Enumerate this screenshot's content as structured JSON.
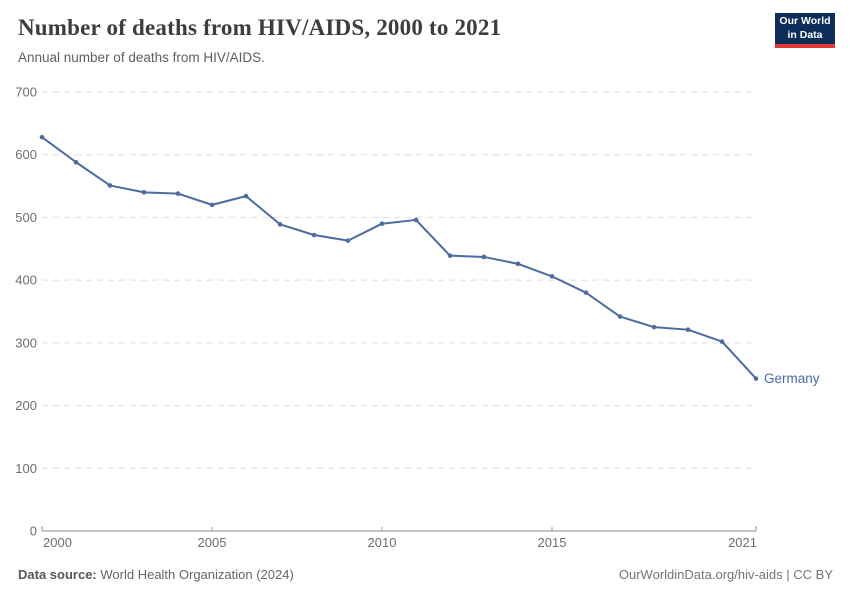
{
  "header": {
    "title": "Number of deaths from HIV/AIDS, 2000 to 2021",
    "subtitle": "Annual number of deaths from HIV/AIDS.",
    "logo": {
      "line1": "Our World",
      "line2": "in Data"
    }
  },
  "chart_data": {
    "type": "line",
    "title": "Number of deaths from HIV/AIDS, 2000 to 2021",
    "xlabel": "",
    "ylabel": "",
    "x": [
      2000,
      2001,
      2002,
      2003,
      2004,
      2005,
      2006,
      2007,
      2008,
      2009,
      2010,
      2011,
      2012,
      2013,
      2014,
      2015,
      2016,
      2017,
      2018,
      2019,
      2020,
      2021
    ],
    "series": [
      {
        "name": "Germany",
        "color": "#4c6b9f",
        "values": [
          628,
          588,
          551,
          540,
          538,
          520,
          534,
          489,
          472,
          463,
          490,
          496,
          439,
          437,
          426,
          406,
          380,
          342,
          325,
          321,
          302,
          243
        ]
      }
    ],
    "ylim": [
      0,
      700
    ],
    "yticks": [
      0,
      100,
      200,
      300,
      400,
      500,
      600,
      700
    ],
    "xticks": [
      2000,
      2005,
      2010,
      2015,
      2021
    ],
    "grid": "horizontal-dashed",
    "legend": "inline-end-label"
  },
  "footer": {
    "source_label": "Data source:",
    "source_value": "World Health Organization (2024)",
    "credit": "OurWorldinData.org/hiv-aids | CC BY"
  },
  "colors": {
    "accent": "#4c6b9f",
    "grid": "#dedede",
    "axis": "#8f8f8f",
    "tick": "#999999",
    "axis_label": "#6e6e6e",
    "logo_bg": "#0d2e5a",
    "logo_red": "#dc3a32"
  }
}
